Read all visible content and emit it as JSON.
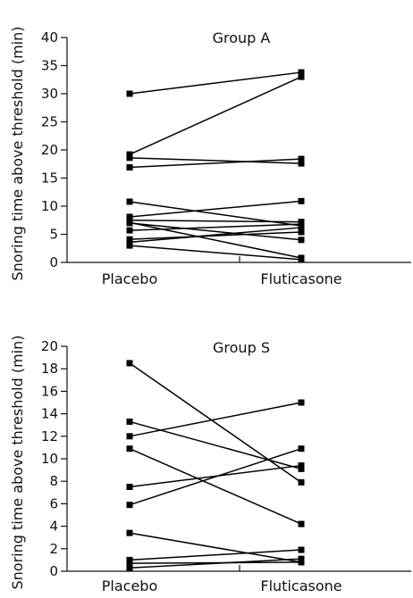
{
  "chart_data": [
    {
      "type": "line",
      "title": "Group A",
      "ylabel": "Snoring time above threshold (min)",
      "categories": [
        "Placebo",
        "Fluticasone"
      ],
      "ylim": [
        0,
        40
      ],
      "yticks": [
        0,
        5,
        10,
        15,
        20,
        25,
        30,
        35,
        40
      ],
      "series": [
        {
          "values": [
            30,
            33.8
          ]
        },
        {
          "values": [
            19.2,
            33
          ]
        },
        {
          "values": [
            18.6,
            17.6
          ]
        },
        {
          "values": [
            16.9,
            18.4
          ]
        },
        {
          "values": [
            10.8,
            6.5
          ]
        },
        {
          "values": [
            8.1,
            10.9
          ]
        },
        {
          "values": [
            7.5,
            7.2
          ]
        },
        {
          "values": [
            7.1,
            0.8
          ]
        },
        {
          "values": [
            7,
            4
          ]
        },
        {
          "values": [
            5.7,
            6.8
          ]
        },
        {
          "values": [
            4.1,
            5.4
          ]
        },
        {
          "values": [
            3.6,
            6.2
          ]
        },
        {
          "values": [
            3,
            0.5
          ]
        }
      ]
    },
    {
      "type": "line",
      "title": "Group S",
      "ylabel": "Snoring time above threshold (min)",
      "categories": [
        "Placebo",
        "Fluticasone"
      ],
      "ylim": [
        0,
        20
      ],
      "yticks": [
        0,
        2,
        4,
        6,
        8,
        10,
        12,
        14,
        16,
        18,
        20
      ],
      "series": [
        {
          "values": [
            18.5,
            7.9
          ]
        },
        {
          "values": [
            13.3,
            9.1
          ]
        },
        {
          "values": [
            12,
            15
          ]
        },
        {
          "values": [
            10.9,
            4.2
          ]
        },
        {
          "values": [
            7.5,
            9.4
          ]
        },
        {
          "values": [
            5.9,
            10.9
          ]
        },
        {
          "values": [
            3.4,
            0.8
          ]
        },
        {
          "values": [
            1,
            1.9
          ]
        },
        {
          "values": [
            0.7,
            0.8
          ]
        },
        {
          "values": [
            0.3,
            1.1
          ]
        }
      ]
    }
  ]
}
